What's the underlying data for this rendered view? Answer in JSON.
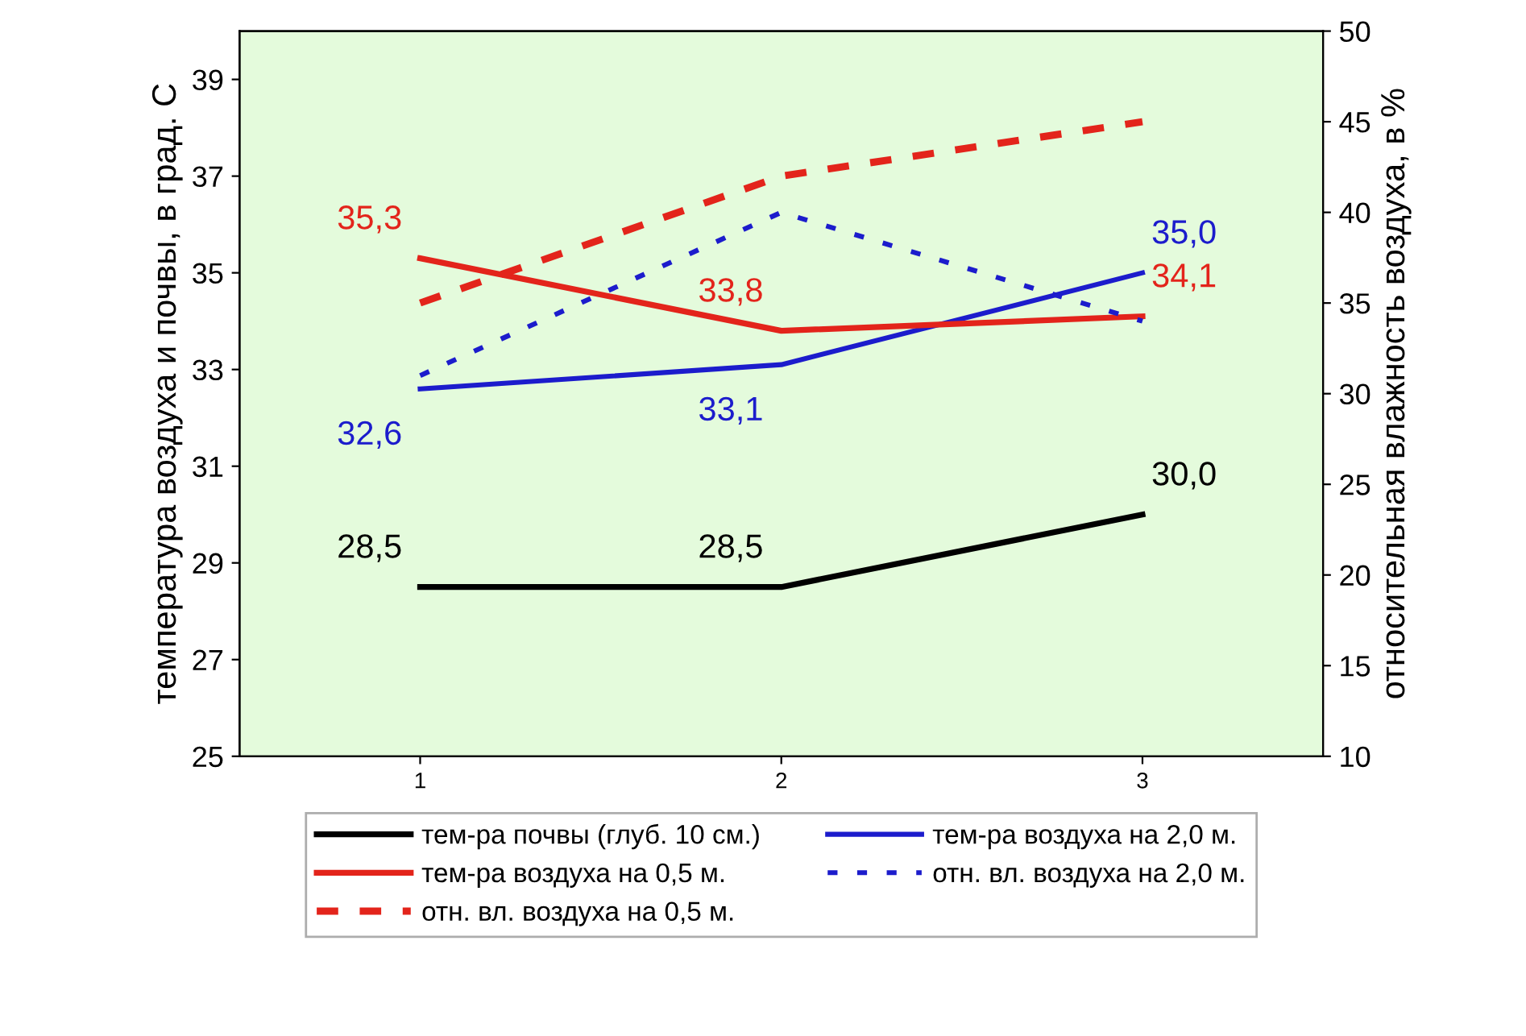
{
  "chart_data": {
    "type": "line",
    "ylabel": "температура воздуха и почвы, в град. С",
    "y2label": "относительная влажность воздуха, в %",
    "categories": [
      "1",
      "2",
      "3"
    ],
    "ylim": [
      25,
      40
    ],
    "yticks": [
      25,
      27,
      29,
      31,
      33,
      35,
      37,
      39
    ],
    "y2lim": [
      10,
      50
    ],
    "y2ticks": [
      10,
      15,
      20,
      25,
      30,
      35,
      40,
      45,
      50
    ],
    "grid": false,
    "legend": "bottom",
    "marker": "none",
    "series": [
      {
        "name": "тем-ра почвы (глуб. 10 см.)",
        "color": "#000000",
        "values": [
          28.5,
          28.5,
          30.0
        ],
        "value_labels": [
          "28,5",
          "28,5",
          "30,0"
        ],
        "line_style": "solid"
      },
      {
        "name": "тем-ра воздуха на 2,0 м.",
        "color": "#1c1ccc",
        "values": [
          32.6,
          33.1,
          35.0
        ],
        "value_labels": [
          "32,6",
          "33,1",
          "35,0"
        ],
        "line_style": "solid"
      },
      {
        "name": "тем-ра воздуха на 0,5 м.",
        "color": "#e3241b",
        "values": [
          35.3,
          33.8,
          34.1
        ],
        "value_labels": [
          "35,3",
          "33,8",
          "34,1"
        ],
        "line_style": "solid"
      },
      {
        "name": "отн. вл. воздуха на 2,0 м.",
        "color": "#1c1ccc",
        "values": [
          31,
          40,
          34
        ],
        "axis": "y2",
        "line_style": "dotted"
      },
      {
        "name": "отн. вл. воздуха на 0,5 м.",
        "color": "#e3241b",
        "values": [
          35,
          42,
          45
        ],
        "axis": "y2",
        "line_style": "dashed"
      }
    ]
  }
}
